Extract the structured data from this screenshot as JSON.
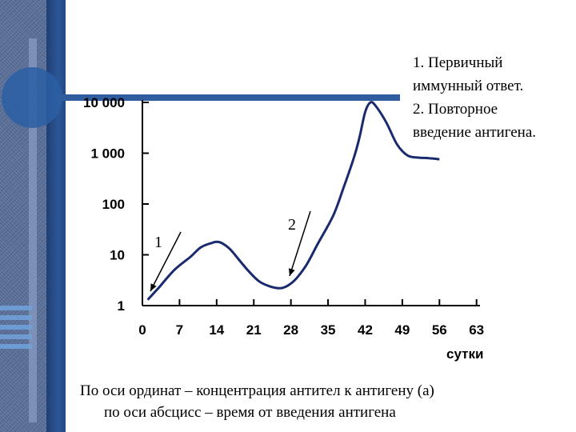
{
  "chart_data": {
    "type": "line",
    "y_scale": "log",
    "y_ticks": [
      "1",
      "10",
      "100",
      "1 000",
      "10 000"
    ],
    "y_tick_values": [
      1,
      10,
      100,
      1000,
      10000
    ],
    "x_ticks": [
      "0",
      "7",
      "14",
      "21",
      "28",
      "35",
      "42",
      "49",
      "56",
      "63"
    ],
    "x_tick_values": [
      0,
      7,
      14,
      21,
      28,
      35,
      42,
      49,
      56,
      63
    ],
    "xlabel": "сутки",
    "xlim": [
      0,
      63
    ],
    "ylim": [
      1,
      10000
    ],
    "series": [
      {
        "x": [
          1,
          3,
          6,
          9,
          11,
          13,
          14,
          15,
          16.5,
          18,
          20,
          22,
          24,
          26,
          27.5,
          29,
          31,
          33,
          36,
          38,
          40,
          41,
          42,
          43,
          44,
          46,
          48,
          50,
          52,
          54,
          56
        ],
        "y": [
          1.3,
          2.2,
          5,
          9,
          14,
          17,
          18,
          17,
          13,
          8.5,
          4.8,
          3,
          2.4,
          2.2,
          2.5,
          3.4,
          6.5,
          16,
          60,
          220,
          900,
          2200,
          6500,
          10000,
          8500,
          4000,
          1500,
          900,
          820,
          800,
          760
        ]
      }
    ],
    "annotations": [
      "1",
      "2"
    ]
  },
  "legend": {
    "line1": "1. Первичный",
    "line2": "иммунный ответ.",
    "line3": "2. Повторное",
    "line4": "введение антигена."
  },
  "caption": {
    "line1": "По оси ординат – концентрация антител к антигену (а)",
    "line2": "по оси абсцисс – время от введения антигена"
  }
}
